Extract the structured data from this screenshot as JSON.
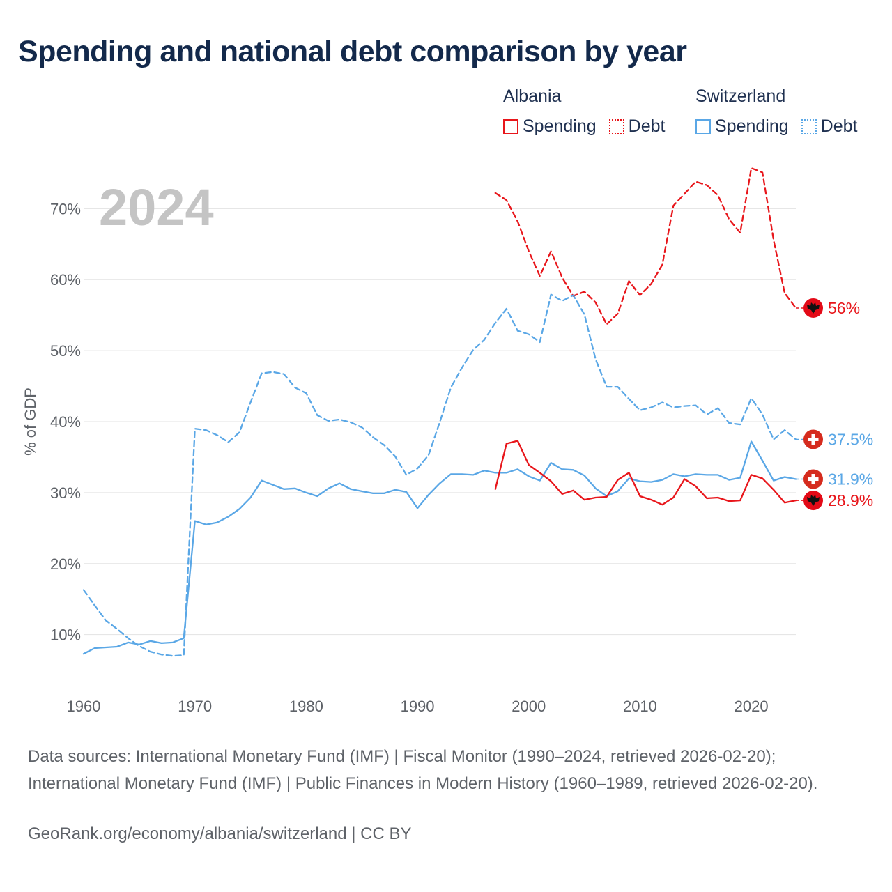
{
  "title": "Spending and national debt comparison by year",
  "legend": {
    "groups": [
      {
        "country": "Albania",
        "items": [
          {
            "label": "Spending",
            "style": "solid",
            "color": "#e8161b"
          },
          {
            "label": "Debt",
            "style": "dotted",
            "color": "#e8161b"
          }
        ]
      },
      {
        "country": "Switzerland",
        "items": [
          {
            "label": "Spending",
            "style": "solid",
            "color": "#5aa7e6"
          },
          {
            "label": "Debt",
            "style": "dotted",
            "color": "#5aa7e6"
          }
        ]
      }
    ]
  },
  "year_watermark": "2024",
  "sources": "Data sources: International Monetary Fund (IMF) | Fiscal Monitor (1990–2024, retrieved 2026-02-20); International Monetary Fund (IMF) | Public Finances in Modern History (1960–1989, retrieved 2026-02-20).",
  "credit": "GeoRank.org/economy/albania/switzerland | CC BY",
  "chart_data": {
    "type": "line",
    "title": "Spending and national debt comparison by year",
    "xlabel": "",
    "ylabel": "% of GDP",
    "xlim": [
      1960,
      2024
    ],
    "ylim": [
      3,
      77
    ],
    "xticks": [
      1960,
      1970,
      1980,
      1990,
      2000,
      2010,
      2020
    ],
    "yticks": [
      10,
      20,
      30,
      40,
      50,
      60,
      70
    ],
    "ytick_labels": [
      "10%",
      "20%",
      "30%",
      "40%",
      "50%",
      "60%",
      "70%"
    ],
    "grid": true,
    "series": [
      {
        "name": "Albania Debt",
        "country": "Albania",
        "metric": "Debt",
        "color": "#e8161b",
        "dash": "dashed",
        "flag": "albania",
        "end_label": "56%",
        "x": [
          1997,
          1998,
          1999,
          2000,
          2001,
          2002,
          2003,
          2004,
          2005,
          2006,
          2007,
          2008,
          2009,
          2010,
          2011,
          2012,
          2013,
          2014,
          2015,
          2016,
          2017,
          2018,
          2019,
          2020,
          2021,
          2022,
          2023,
          2024
        ],
        "y": [
          72.2,
          71.2,
          68.2,
          64.0,
          60.5,
          64.0,
          60.3,
          57.7,
          58.3,
          56.8,
          53.7,
          55.2,
          59.8,
          57.8,
          59.4,
          62.1,
          70.4,
          72.1,
          73.8,
          73.3,
          71.9,
          68.5,
          66.6,
          75.7,
          75.1,
          65.6,
          58.1,
          56.0
        ]
      },
      {
        "name": "Switzerland Debt",
        "country": "Switzerland",
        "metric": "Debt",
        "color": "#5aa7e6",
        "dash": "dashed",
        "flag": "switzerland",
        "end_label": "37.5%",
        "x": [
          1960,
          1961,
          1962,
          1963,
          1964,
          1965,
          1966,
          1967,
          1968,
          1969,
          1970,
          1971,
          1972,
          1973,
          1974,
          1975,
          1976,
          1977,
          1978,
          1979,
          1980,
          1981,
          1982,
          1983,
          1984,
          1985,
          1986,
          1987,
          1988,
          1989,
          1990,
          1991,
          1992,
          1993,
          1994,
          1995,
          1996,
          1997,
          1998,
          1999,
          2000,
          2001,
          2002,
          2003,
          2004,
          2005,
          2006,
          2007,
          2008,
          2009,
          2010,
          2011,
          2012,
          2013,
          2014,
          2015,
          2016,
          2017,
          2018,
          2019,
          2020,
          2021,
          2022,
          2023,
          2024
        ],
        "y": [
          16.3,
          14.1,
          12.0,
          10.8,
          9.5,
          8.4,
          7.6,
          7.2,
          7.0,
          7.1,
          39.0,
          38.8,
          38.1,
          37.1,
          38.5,
          42.7,
          46.8,
          47.0,
          46.7,
          44.8,
          44.0,
          40.9,
          40.1,
          40.3,
          39.9,
          39.2,
          37.8,
          36.7,
          35.1,
          32.5,
          33.4,
          35.3,
          39.9,
          44.8,
          47.6,
          50.1,
          51.5,
          53.9,
          55.9,
          52.8,
          52.3,
          51.2,
          57.9,
          57.0,
          57.8,
          55.1,
          48.8,
          44.9,
          44.9,
          43.2,
          41.6,
          42.0,
          42.7,
          42.0,
          42.2,
          42.3,
          41.0,
          41.9,
          39.8,
          39.6,
          43.3,
          41.0,
          37.5,
          38.8,
          37.5
        ]
      },
      {
        "name": "Switzerland Spending",
        "country": "Switzerland",
        "metric": "Spending",
        "color": "#5aa7e6",
        "dash": "solid",
        "flag": "switzerland",
        "end_label": "31.9%",
        "x": [
          1960,
          1961,
          1962,
          1963,
          1964,
          1965,
          1966,
          1967,
          1968,
          1969,
          1970,
          1971,
          1972,
          1973,
          1974,
          1975,
          1976,
          1977,
          1978,
          1979,
          1980,
          1981,
          1982,
          1983,
          1984,
          1985,
          1986,
          1987,
          1988,
          1989,
          1990,
          1991,
          1992,
          1993,
          1994,
          1995,
          1996,
          1997,
          1998,
          1999,
          2000,
          2001,
          2002,
          2003,
          2004,
          2005,
          2006,
          2007,
          2008,
          2009,
          2010,
          2011,
          2012,
          2013,
          2014,
          2015,
          2016,
          2017,
          2018,
          2019,
          2020,
          2021,
          2022,
          2023,
          2024
        ],
        "y": [
          7.3,
          8.1,
          8.2,
          8.3,
          8.9,
          8.6,
          9.1,
          8.8,
          8.9,
          9.5,
          26.0,
          25.5,
          25.8,
          26.6,
          27.7,
          29.3,
          31.7,
          31.1,
          30.5,
          30.6,
          30.0,
          29.5,
          30.6,
          31.3,
          30.5,
          30.2,
          29.9,
          29.9,
          30.4,
          30.1,
          27.8,
          29.7,
          31.3,
          32.6,
          32.6,
          32.5,
          33.1,
          32.8,
          32.8,
          33.3,
          32.3,
          31.7,
          34.2,
          33.3,
          33.2,
          32.4,
          30.6,
          29.5,
          30.2,
          32.0,
          31.6,
          31.5,
          31.8,
          32.6,
          32.3,
          32.6,
          32.5,
          32.5,
          31.8,
          32.1,
          37.2,
          34.5,
          31.7,
          32.2,
          31.9
        ]
      },
      {
        "name": "Albania Spending",
        "country": "Albania",
        "metric": "Spending",
        "color": "#e8161b",
        "dash": "solid",
        "flag": "albania",
        "end_label": "28.9%",
        "x": [
          1997,
          1998,
          1999,
          2000,
          2001,
          2002,
          2003,
          2004,
          2005,
          2006,
          2007,
          2008,
          2009,
          2010,
          2011,
          2012,
          2013,
          2014,
          2015,
          2016,
          2017,
          2018,
          2019,
          2020,
          2021,
          2022,
          2023,
          2024
        ],
        "y": [
          30.5,
          36.9,
          37.3,
          33.9,
          32.8,
          31.6,
          29.8,
          30.3,
          29.0,
          29.3,
          29.4,
          31.8,
          32.8,
          29.5,
          29.0,
          28.3,
          29.3,
          31.9,
          30.9,
          29.2,
          29.3,
          28.8,
          28.9,
          32.5,
          32.0,
          30.4,
          28.6,
          28.9
        ]
      }
    ]
  }
}
